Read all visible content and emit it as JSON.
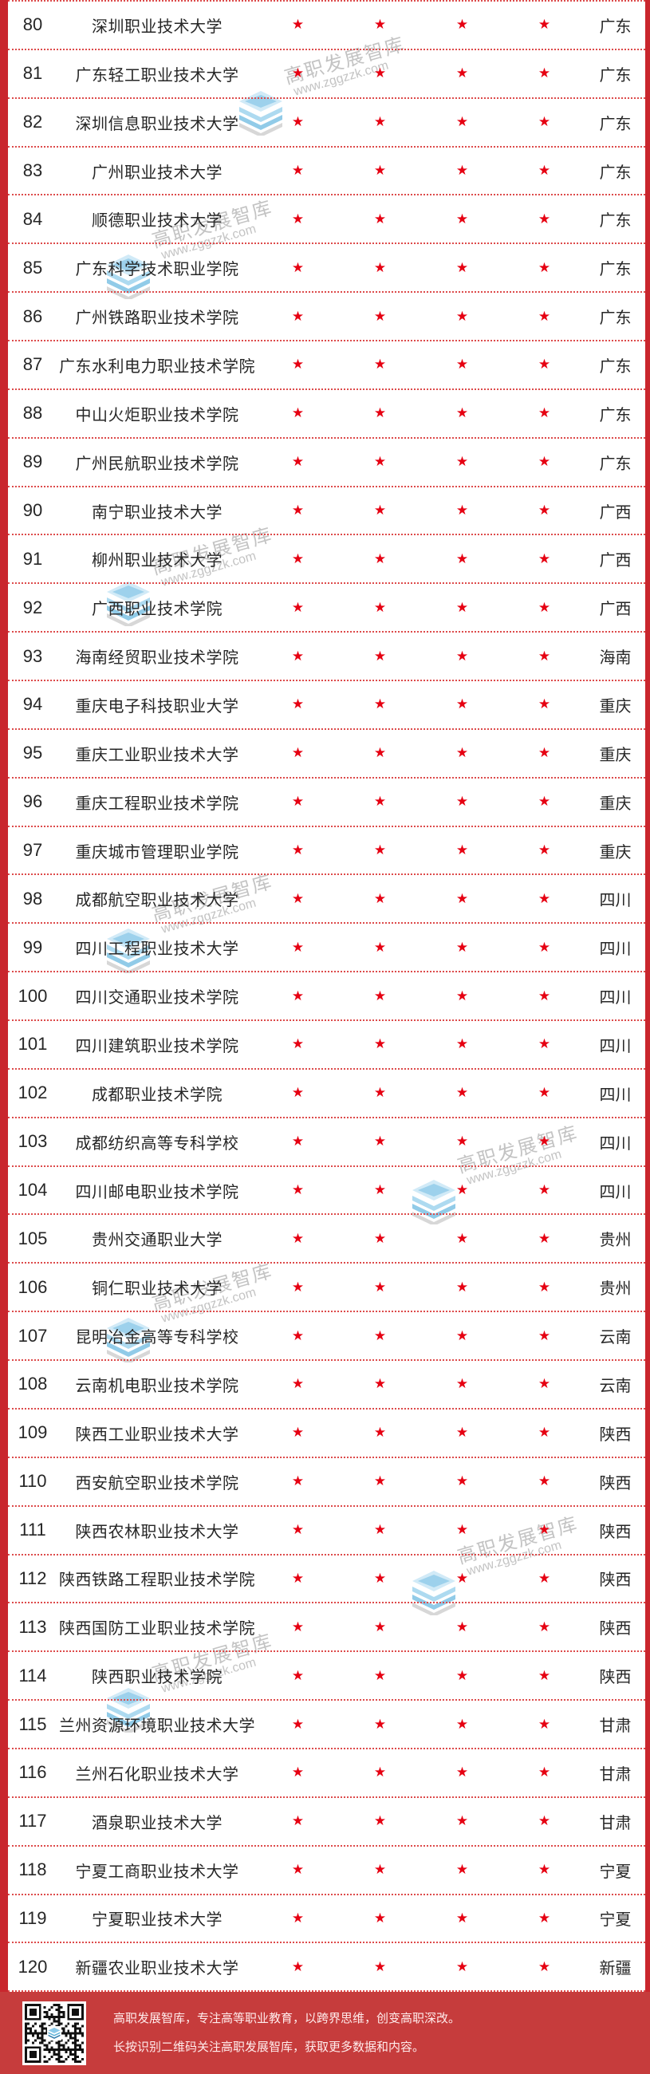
{
  "table": {
    "star_glyph": "★",
    "rows": [
      {
        "rank": "80",
        "name": "深圳职业技术大学",
        "stars": 4,
        "province": "广东"
      },
      {
        "rank": "81",
        "name": "广东轻工职业技术大学",
        "stars": 4,
        "province": "广东"
      },
      {
        "rank": "82",
        "name": "深圳信息职业技术大学",
        "stars": 4,
        "province": "广东"
      },
      {
        "rank": "83",
        "name": "广州职业技术大学",
        "stars": 4,
        "province": "广东"
      },
      {
        "rank": "84",
        "name": "顺德职业技术大学",
        "stars": 4,
        "province": "广东"
      },
      {
        "rank": "85",
        "name": "广东科学技术职业学院",
        "stars": 4,
        "province": "广东"
      },
      {
        "rank": "86",
        "name": "广州铁路职业技术学院",
        "stars": 4,
        "province": "广东"
      },
      {
        "rank": "87",
        "name": "广东水利电力职业技术学院",
        "stars": 4,
        "province": "广东"
      },
      {
        "rank": "88",
        "name": "中山火炬职业技术学院",
        "stars": 4,
        "province": "广东"
      },
      {
        "rank": "89",
        "name": "广州民航职业技术学院",
        "stars": 4,
        "province": "广东"
      },
      {
        "rank": "90",
        "name": "南宁职业技术大学",
        "stars": 4,
        "province": "广西"
      },
      {
        "rank": "91",
        "name": "柳州职业技术大学",
        "stars": 4,
        "province": "广西"
      },
      {
        "rank": "92",
        "name": "广西职业技术学院",
        "stars": 4,
        "province": "广西"
      },
      {
        "rank": "93",
        "name": "海南经贸职业技术学院",
        "stars": 4,
        "province": "海南"
      },
      {
        "rank": "94",
        "name": "重庆电子科技职业大学",
        "stars": 4,
        "province": "重庆"
      },
      {
        "rank": "95",
        "name": "重庆工业职业技术大学",
        "stars": 4,
        "province": "重庆"
      },
      {
        "rank": "96",
        "name": "重庆工程职业技术学院",
        "stars": 4,
        "province": "重庆"
      },
      {
        "rank": "97",
        "name": "重庆城市管理职业学院",
        "stars": 4,
        "province": "重庆"
      },
      {
        "rank": "98",
        "name": "成都航空职业技术大学",
        "stars": 4,
        "province": "四川"
      },
      {
        "rank": "99",
        "name": "四川工程职业技术大学",
        "stars": 4,
        "province": "四川"
      },
      {
        "rank": "100",
        "name": "四川交通职业技术学院",
        "stars": 4,
        "province": "四川"
      },
      {
        "rank": "101",
        "name": "四川建筑职业技术学院",
        "stars": 4,
        "province": "四川"
      },
      {
        "rank": "102",
        "name": "成都职业技术学院",
        "stars": 4,
        "province": "四川"
      },
      {
        "rank": "103",
        "name": "成都纺织高等专科学校",
        "stars": 4,
        "province": "四川"
      },
      {
        "rank": "104",
        "name": "四川邮电职业技术学院",
        "stars": 4,
        "province": "四川"
      },
      {
        "rank": "105",
        "name": "贵州交通职业大学",
        "stars": 4,
        "province": "贵州"
      },
      {
        "rank": "106",
        "name": "铜仁职业技术大学",
        "stars": 4,
        "province": "贵州"
      },
      {
        "rank": "107",
        "name": "昆明冶金高等专科学校",
        "stars": 4,
        "province": "云南"
      },
      {
        "rank": "108",
        "name": "云南机电职业技术学院",
        "stars": 4,
        "province": "云南"
      },
      {
        "rank": "109",
        "name": "陕西工业职业技术大学",
        "stars": 4,
        "province": "陕西"
      },
      {
        "rank": "110",
        "name": "西安航空职业技术学院",
        "stars": 4,
        "province": "陕西"
      },
      {
        "rank": "111",
        "name": "陕西农林职业技术大学",
        "stars": 4,
        "province": "陕西"
      },
      {
        "rank": "112",
        "name": "陕西铁路工程职业技术学院",
        "stars": 4,
        "province": "陕西"
      },
      {
        "rank": "113",
        "name": "陕西国防工业职业技术学院",
        "stars": 4,
        "province": "陕西"
      },
      {
        "rank": "114",
        "name": "陕西职业技术学院",
        "stars": 4,
        "province": "陕西"
      },
      {
        "rank": "115",
        "name": "兰州资源环境职业技术大学",
        "stars": 4,
        "province": "甘肃"
      },
      {
        "rank": "116",
        "name": "兰州石化职业技术大学",
        "stars": 4,
        "province": "甘肃"
      },
      {
        "rank": "117",
        "name": "酒泉职业技术大学",
        "stars": 4,
        "province": "甘肃"
      },
      {
        "rank": "118",
        "name": "宁夏工商职业技术大学",
        "stars": 4,
        "province": "宁夏"
      },
      {
        "rank": "119",
        "name": "宁夏职业技术大学",
        "stars": 4,
        "province": "宁夏"
      },
      {
        "rank": "120",
        "name": "新疆农业职业技术大学",
        "stars": 4,
        "province": "新疆"
      }
    ]
  },
  "watermark": {
    "brand": "高职发展智库",
    "url": "www.zggzzk.com",
    "logo": "layers-logo"
  },
  "footer": {
    "line1": "高职发展智库，专注高等职业教育，以跨界思维，创变高职深改。",
    "line2": "长按识别二维码关注高职发展智库，获取更多数据和内容。",
    "qr_icon": "qr-code"
  },
  "colors": {
    "frame_red": "#c9262d",
    "divider_red": "#dd4a4a",
    "star_red": "#e60012",
    "footer_bg": "#c63c3c",
    "footer_text": "#ffecec",
    "watermark_gray": "#b5b5b5",
    "watermark_blue": "#7ec3e4"
  }
}
